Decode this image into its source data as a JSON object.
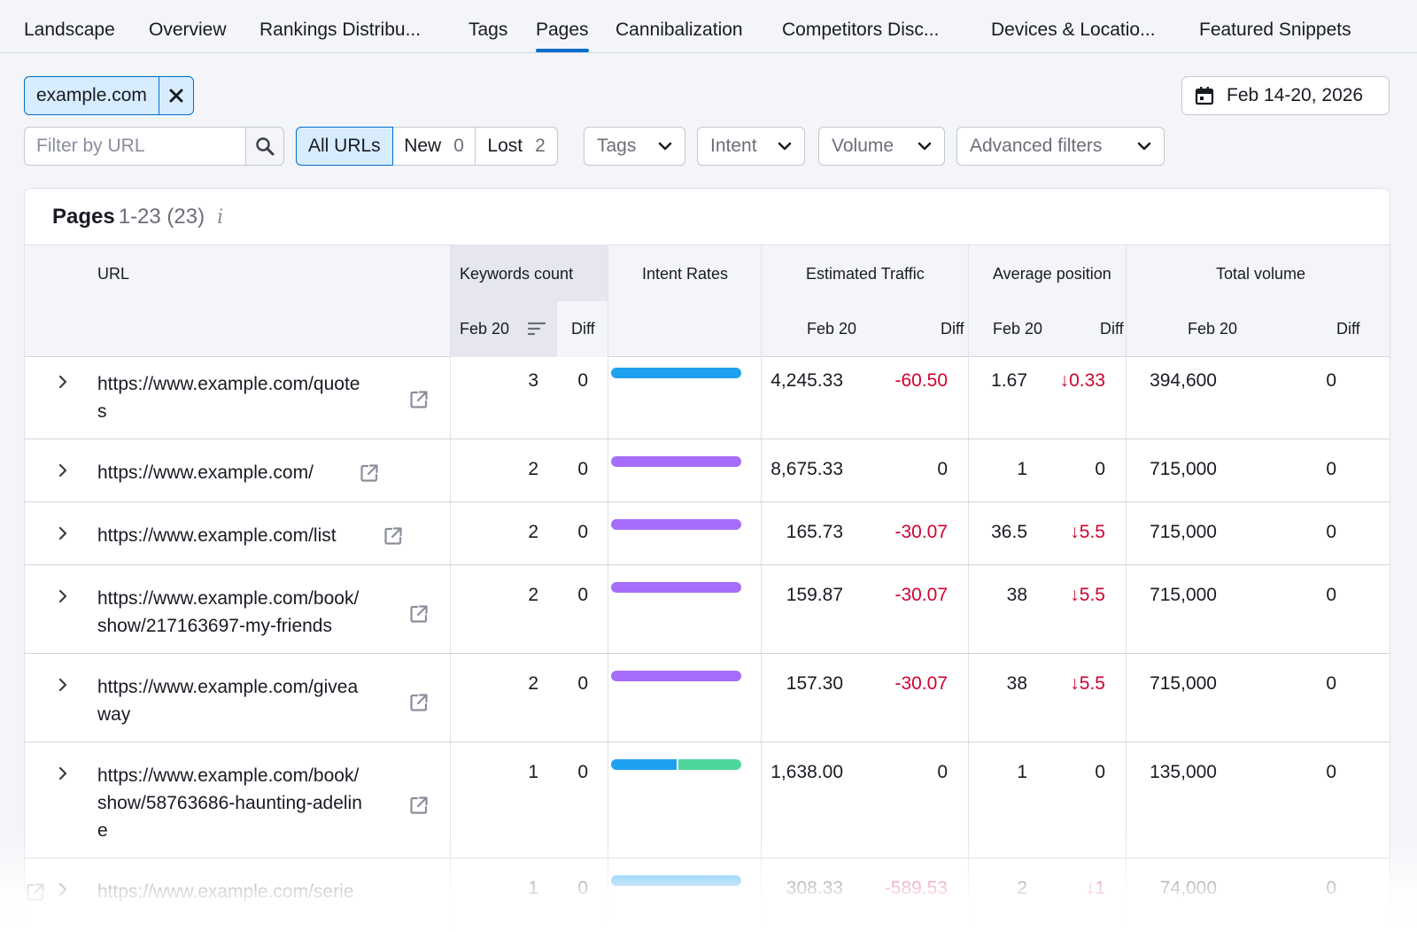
{
  "tabs": [
    "Landscape",
    "Overview",
    "Rankings Distribu...",
    "Tags",
    "Pages",
    "Cannibalization",
    "Competitors Disc...",
    "Devices & Locatio...",
    "Featured Snippets"
  ],
  "active_tab": "Pages",
  "domain_chip": "example.com",
  "date_range": "Feb 14-20, 2026",
  "filter_url_placeholder": "Filter by URL",
  "url_segments": [
    {
      "label": "All URLs",
      "count": ""
    },
    {
      "label": "New",
      "count": "0"
    },
    {
      "label": "Lost",
      "count": "2"
    }
  ],
  "dropdowns": [
    "Tags",
    "Intent",
    "Volume",
    "Advanced filters"
  ],
  "panel": {
    "title": "Pages",
    "range": "1-23 (23)",
    "info": "i"
  },
  "columns": {
    "url": "URL",
    "keywords_count": "Keywords count",
    "intent_rates": "Intent Rates",
    "estimated_traffic": "Estimated Traffic",
    "average_position": "Average position",
    "total_volume": "Total volume",
    "date": "Feb 20",
    "diff": "Diff"
  },
  "colors": {
    "accent": "#006dca",
    "negative": "#d1002f",
    "intent_informational": "#1ea0f0",
    "intent_commercial": "#a56dfa",
    "intent_transactional": "#4fd69c"
  },
  "rows": [
    {
      "url_lines": [
        "https://www.example.com/quote",
        "s"
      ],
      "kw": "3",
      "kw_diff": "0",
      "intent": [
        {
          "color": "#1ea0f0",
          "share": 1
        }
      ],
      "traffic": "4,245.33",
      "traffic_diff": "-60.50",
      "pos": "1.67",
      "pos_diff": "↓0.33",
      "volume": "394,600",
      "volume_diff": "0"
    },
    {
      "url_lines": [
        "https://www.example.com/"
      ],
      "kw": "2",
      "kw_diff": "0",
      "intent": [
        {
          "color": "#a56dfa",
          "share": 1
        }
      ],
      "traffic": "8,675.33",
      "traffic_diff": "0",
      "pos": "1",
      "pos_diff": "0",
      "volume": "715,000",
      "volume_diff": "0"
    },
    {
      "url_lines": [
        "https://www.example.com/list"
      ],
      "kw": "2",
      "kw_diff": "0",
      "intent": [
        {
          "color": "#a56dfa",
          "share": 1
        }
      ],
      "traffic": "165.73",
      "traffic_diff": "-30.07",
      "pos": "36.5",
      "pos_diff": "↓5.5",
      "volume": "715,000",
      "volume_diff": "0"
    },
    {
      "url_lines": [
        "https://www.example.com/book/",
        "show/217163697-my-friends"
      ],
      "kw": "2",
      "kw_diff": "0",
      "intent": [
        {
          "color": "#a56dfa",
          "share": 1
        }
      ],
      "traffic": "159.87",
      "traffic_diff": "-30.07",
      "pos": "38",
      "pos_diff": "↓5.5",
      "volume": "715,000",
      "volume_diff": "0"
    },
    {
      "url_lines": [
        "https://www.example.com/givea",
        "way"
      ],
      "kw": "2",
      "kw_diff": "0",
      "intent": [
        {
          "color": "#a56dfa",
          "share": 1
        }
      ],
      "traffic": "157.30",
      "traffic_diff": "-30.07",
      "pos": "38",
      "pos_diff": "↓5.5",
      "volume": "715,000",
      "volume_diff": "0"
    },
    {
      "url_lines": [
        "https://www.example.com/book/",
        "show/58763686-haunting-adelin",
        "e"
      ],
      "kw": "1",
      "kw_diff": "0",
      "intent": [
        {
          "color": "#1ea0f0",
          "share": 0.5
        },
        {
          "color": "#4fd69c",
          "share": 0.5
        }
      ],
      "traffic": "1,638.00",
      "traffic_diff": "0",
      "pos": "1",
      "pos_diff": "0",
      "volume": "135,000",
      "volume_diff": "0"
    },
    {
      "url_lines": [
        "https://www.example.com/serie"
      ],
      "kw": "1",
      "kw_diff": "0",
      "intent": [
        {
          "color": "#1ea0f0",
          "share": 1
        }
      ],
      "traffic": "308.33",
      "traffic_diff": "-589.53",
      "pos": "2",
      "pos_diff": "↓1",
      "volume": "74,000",
      "volume_diff": "0"
    }
  ]
}
